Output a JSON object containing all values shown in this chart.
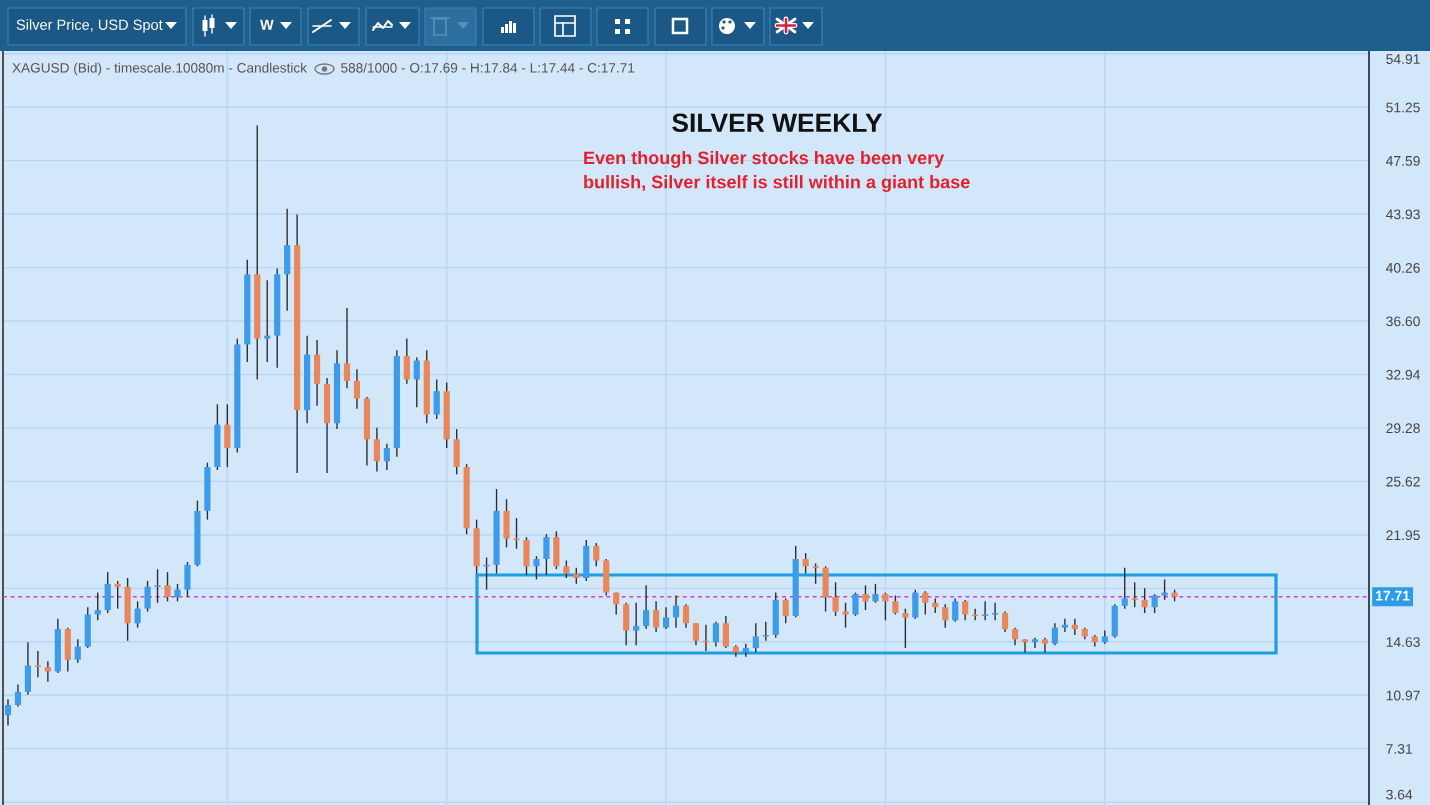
{
  "chart_data": {
    "type": "candlestick",
    "title": "SILVER WEEKLY",
    "subtitle": "XAGUSD (Bid) - timescale.10080m - Candlestick",
    "annotations": [
      "588/1000 - O:17.69 - H:17.84 - L:17.44 - C:17.71",
      "Even though Silver stocks have been very\nbullish, Silver itself is still within a giant base",
      "Silver Price, USD Spot",
      "W"
    ],
    "categories": [
      null,
      null,
      null,
      null,
      null,
      null,
      null,
      null,
      null,
      null,
      null,
      null,
      null,
      null,
      null,
      null,
      null,
      null,
      null,
      null,
      null,
      null,
      null,
      null,
      null,
      null,
      null,
      null,
      null,
      null,
      null,
      null,
      null,
      null,
      null,
      null,
      null,
      null,
      null,
      null,
      null,
      null,
      null,
      null,
      null,
      null,
      null,
      null,
      null,
      null,
      null,
      null,
      null,
      null,
      null,
      null,
      null,
      null,
      null,
      null,
      null,
      null,
      null,
      null,
      null,
      null,
      null,
      null,
      null,
      null,
      null,
      null,
      null,
      null,
      null,
      null,
      null,
      null,
      null,
      null,
      null,
      null,
      null,
      null,
      null,
      null,
      null,
      null,
      null,
      null,
      null,
      null,
      null,
      null,
      null,
      null,
      null,
      null,
      null,
      null,
      null,
      null,
      null,
      null,
      null,
      null,
      null,
      null,
      null,
      null,
      null,
      null,
      null,
      null,
      null,
      null,
      null,
      null,
      null,
      null,
      null,
      null,
      null,
      null,
      null,
      null,
      null,
      null,
      null,
      null,
      null,
      null,
      null,
      null,
      null,
      null,
      null
    ],
    "ohlc": [
      [
        9.6,
        10.7,
        8.9,
        10.3
      ],
      [
        10.3,
        11.7,
        10.2,
        11.2
      ],
      [
        11.2,
        14.6,
        11.0,
        13.0
      ],
      [
        13.0,
        14.0,
        12.2,
        12.9
      ],
      [
        12.9,
        13.3,
        11.9,
        12.6
      ],
      [
        12.6,
        16.2,
        12.5,
        15.5
      ],
      [
        15.5,
        15.6,
        12.6,
        13.4
      ],
      [
        13.4,
        14.8,
        13.2,
        14.3
      ],
      [
        14.3,
        17.0,
        14.2,
        16.5
      ],
      [
        16.5,
        18.0,
        16.1,
        16.8
      ],
      [
        16.8,
        19.4,
        16.6,
        18.6
      ],
      [
        18.6,
        18.8,
        16.9,
        18.4
      ],
      [
        18.4,
        19.0,
        14.7,
        15.9
      ],
      [
        15.9,
        17.4,
        15.6,
        16.9
      ],
      [
        16.9,
        18.8,
        16.7,
        18.4
      ],
      [
        18.4,
        19.6,
        17.3,
        18.5
      ],
      [
        18.5,
        19.4,
        17.4,
        17.7
      ],
      [
        17.7,
        18.6,
        17.4,
        18.2
      ],
      [
        18.2,
        20.1,
        17.7,
        19.9
      ],
      [
        19.9,
        24.3,
        19.8,
        23.6
      ],
      [
        23.6,
        26.9,
        23.0,
        26.6
      ],
      [
        26.6,
        30.9,
        26.4,
        29.5
      ],
      [
        29.5,
        30.9,
        26.6,
        27.9
      ],
      [
        27.9,
        35.4,
        27.6,
        35.0
      ],
      [
        35.0,
        40.8,
        33.8,
        39.8
      ],
      [
        39.8,
        50.0,
        32.6,
        35.4
      ],
      [
        35.4,
        39.4,
        33.8,
        35.6
      ],
      [
        35.6,
        40.2,
        33.4,
        39.8
      ],
      [
        39.8,
        44.3,
        37.3,
        41.8
      ],
      [
        41.8,
        43.9,
        26.2,
        30.5
      ],
      [
        30.5,
        35.6,
        29.6,
        34.3
      ],
      [
        34.3,
        35.3,
        30.8,
        32.3
      ],
      [
        32.3,
        32.7,
        26.2,
        29.6
      ],
      [
        29.6,
        34.6,
        29.2,
        33.7
      ],
      [
        33.7,
        37.5,
        32.0,
        32.5
      ],
      [
        32.5,
        33.3,
        30.6,
        31.3
      ],
      [
        31.3,
        31.4,
        26.7,
        28.5
      ],
      [
        28.5,
        29.3,
        26.3,
        27.0
      ],
      [
        27.0,
        28.2,
        26.4,
        27.9
      ],
      [
        27.9,
        34.6,
        27.3,
        34.2
      ],
      [
        34.2,
        35.4,
        32.3,
        32.6
      ],
      [
        32.6,
        34.1,
        30.7,
        33.9
      ],
      [
        33.9,
        34.6,
        29.6,
        30.2
      ],
      [
        30.2,
        32.6,
        29.9,
        31.8
      ],
      [
        31.8,
        32.4,
        27.9,
        28.5
      ],
      [
        28.5,
        29.2,
        26.1,
        26.6
      ],
      [
        26.6,
        26.8,
        22.0,
        22.4
      ],
      [
        22.4,
        23.0,
        19.3,
        19.8
      ],
      [
        19.8,
        20.4,
        18.2,
        19.9
      ],
      [
        19.9,
        25.1,
        19.3,
        23.6
      ],
      [
        23.6,
        24.4,
        21.1,
        21.7
      ],
      [
        21.7,
        23.1,
        21.0,
        21.6
      ],
      [
        21.6,
        21.8,
        19.2,
        19.8
      ],
      [
        19.8,
        20.5,
        18.9,
        20.3
      ],
      [
        20.3,
        22.0,
        19.2,
        21.8
      ],
      [
        21.8,
        22.2,
        19.6,
        19.8
      ],
      [
        19.8,
        20.2,
        19.0,
        19.3
      ],
      [
        19.3,
        19.7,
        18.6,
        19.0
      ],
      [
        19.0,
        21.6,
        18.8,
        21.2
      ],
      [
        21.2,
        21.4,
        19.8,
        20.2
      ],
      [
        20.2,
        20.3,
        17.8,
        18.0
      ],
      [
        18.0,
        18.0,
        16.5,
        17.2
      ],
      [
        17.2,
        17.3,
        14.4,
        15.4
      ],
      [
        15.4,
        17.3,
        14.4,
        15.7
      ],
      [
        15.7,
        18.5,
        15.5,
        16.8
      ],
      [
        16.8,
        17.4,
        15.3,
        15.6
      ],
      [
        15.6,
        17.0,
        15.5,
        16.3
      ],
      [
        16.3,
        17.8,
        15.6,
        17.1
      ],
      [
        17.1,
        17.2,
        15.6,
        15.9
      ],
      [
        15.9,
        15.9,
        14.4,
        14.7
      ],
      [
        14.7,
        15.8,
        14.0,
        14.6
      ],
      [
        14.6,
        16.0,
        14.3,
        15.9
      ],
      [
        15.9,
        16.4,
        14.2,
        14.3
      ],
      [
        14.3,
        14.4,
        13.6,
        13.9
      ],
      [
        13.9,
        14.5,
        13.6,
        14.2
      ],
      [
        14.2,
        15.9,
        13.9,
        15.0
      ],
      [
        15.0,
        16.0,
        14.7,
        15.1
      ],
      [
        15.1,
        18.0,
        14.9,
        17.5
      ],
      [
        17.5,
        17.6,
        15.9,
        16.4
      ],
      [
        16.4,
        21.2,
        16.3,
        20.3
      ],
      [
        20.3,
        20.7,
        19.3,
        19.8
      ],
      [
        19.8,
        20.0,
        18.6,
        19.7
      ],
      [
        19.7,
        19.8,
        16.7,
        17.7
      ],
      [
        17.7,
        18.7,
        16.4,
        16.7
      ],
      [
        16.7,
        17.3,
        15.6,
        16.5
      ],
      [
        16.5,
        18.0,
        16.4,
        17.9
      ],
      [
        17.9,
        18.5,
        16.8,
        17.4
      ],
      [
        17.4,
        18.6,
        17.3,
        17.9
      ],
      [
        17.9,
        18.0,
        16.1,
        17.4
      ],
      [
        17.4,
        17.8,
        16.5,
        16.6
      ],
      [
        16.6,
        16.9,
        14.2,
        16.3
      ],
      [
        16.3,
        18.2,
        16.2,
        18.0
      ],
      [
        18.0,
        18.1,
        16.5,
        17.3
      ],
      [
        17.3,
        17.6,
        16.6,
        17.0
      ],
      [
        17.0,
        17.2,
        15.6,
        16.1
      ],
      [
        16.1,
        17.6,
        16.0,
        17.4
      ],
      [
        17.4,
        17.5,
        16.1,
        16.5
      ],
      [
        16.5,
        16.9,
        16.1,
        16.4
      ],
      [
        16.4,
        17.4,
        16.1,
        16.5
      ],
      [
        16.5,
        17.3,
        16.1,
        16.6
      ],
      [
        16.6,
        16.7,
        15.3,
        15.5
      ],
      [
        15.5,
        15.6,
        14.4,
        14.8
      ],
      [
        14.8,
        14.8,
        13.9,
        14.6
      ],
      [
        14.6,
        14.9,
        14.2,
        14.8
      ],
      [
        14.8,
        14.9,
        13.9,
        14.5
      ],
      [
        14.5,
        15.9,
        14.4,
        15.6
      ],
      [
        15.6,
        16.2,
        15.3,
        15.8
      ],
      [
        15.8,
        16.2,
        15.1,
        15.5
      ],
      [
        15.5,
        15.6,
        14.8,
        15.0
      ],
      [
        15.0,
        15.1,
        14.3,
        14.6
      ],
      [
        14.6,
        15.4,
        14.5,
        15.0
      ],
      [
        15.0,
        17.2,
        14.9,
        17.1
      ],
      [
        17.1,
        19.7,
        16.9,
        17.6
      ],
      [
        17.6,
        18.7,
        17.0,
        17.5
      ],
      [
        17.5,
        18.3,
        16.6,
        17.0
      ],
      [
        17.0,
        17.9,
        16.6,
        17.8
      ],
      [
        17.8,
        18.9,
        17.5,
        18.0
      ],
      [
        18.0,
        18.2,
        17.4,
        17.71
      ],
      null,
      null,
      null,
      null,
      null,
      null,
      null,
      null,
      null,
      null,
      null,
      null,
      null,
      null,
      null,
      null,
      null,
      null,
      null
    ],
    "colors": [
      "#3d9be9",
      "#3d9be9",
      "#3d9be9",
      "#e8875b",
      "#e8875b",
      "#3d9be9",
      "#e8875b",
      "#3d9be9",
      "#3d9be9",
      "#3d9be9",
      "#3d9be9",
      "#e8875b",
      "#e8875b",
      "#3d9be9",
      "#3d9be9",
      "#3d9be9",
      "#e8875b",
      "#3d9be9",
      "#3d9be9",
      "#3d9be9",
      "#3d9be9",
      "#3d9be9",
      "#e8875b",
      "#3d9be9",
      "#3d9be9",
      "#e8875b",
      "#3d9be9",
      "#3d9be9",
      "#3d9be9",
      "#e8875b",
      "#3d9be9",
      "#e8875b",
      "#e8875b",
      "#3d9be9",
      "#e8875b",
      "#e8875b",
      "#e8875b",
      "#e8875b",
      "#3d9be9",
      "#3d9be9",
      "#e8875b",
      "#3d9be9",
      "#e8875b",
      "#3d9be9",
      "#e8875b",
      "#e8875b",
      "#e8875b",
      "#e8875b",
      "#3d9be9",
      "#3d9be9",
      "#e8875b",
      "#e8875b",
      "#e8875b",
      "#3d9be9",
      "#3d9be9",
      "#e8875b",
      "#e8875b",
      "#e8875b",
      "#3d9be9",
      "#e8875b",
      "#e8875b",
      "#e8875b",
      "#e8875b",
      "#3d9be9",
      "#3d9be9",
      "#e8875b",
      "#3d9be9",
      "#3d9be9",
      "#e8875b",
      "#e8875b",
      "#e8875b",
      "#3d9be9",
      "#e8875b",
      "#e8875b",
      "#3d9be9",
      "#3d9be9",
      "#3d9be9",
      "#3d9be9",
      "#e8875b",
      "#3d9be9",
      "#e8875b",
      "#e8875b",
      "#e8875b",
      "#e8875b",
      "#e8875b",
      "#3d9be9",
      "#e8875b",
      "#3d9be9",
      "#e8875b",
      "#e8875b",
      "#e8875b",
      "#3d9be9",
      "#e8875b",
      "#e8875b",
      "#e8875b",
      "#3d9be9",
      "#e8875b",
      "#e8875b",
      "#3d9be9",
      "#3d9be9",
      "#e8875b",
      "#e8875b",
      "#e8875b",
      "#3d9be9",
      "#e8875b",
      "#3d9be9",
      "#3d9be9",
      "#e8875b",
      "#e8875b",
      "#e8875b",
      "#3d9be9",
      "#3d9be9",
      "#3d9be9",
      "#e8875b",
      "#e8875b",
      "#3d9be9",
      "#3d9be9",
      "#e8875b",
      null,
      null,
      null,
      null,
      null,
      null,
      null,
      null,
      null,
      null,
      null,
      null,
      null,
      null,
      null,
      null,
      null,
      null,
      null
    ],
    "ylim": [
      3.45,
      55.1
    ],
    "yticks": [
      3.64,
      7.31,
      10.97,
      14.63,
      {
        "value": 18.29,
        "label": null
      },
      21.95,
      25.62,
      29.28,
      32.94,
      {
        "value": 36.6,
        "label": "36.60"
      },
      40.26,
      43.93,
      47.59,
      51.25,
      54.91
    ],
    "tick_labels": "y",
    "grid": true,
    "ref_lines": [
      {
        "axis": "y",
        "value": 17.71,
        "label": "17.71",
        "color": "#d83ad8",
        "line_style": "dashed"
      }
    ]
  }
}
